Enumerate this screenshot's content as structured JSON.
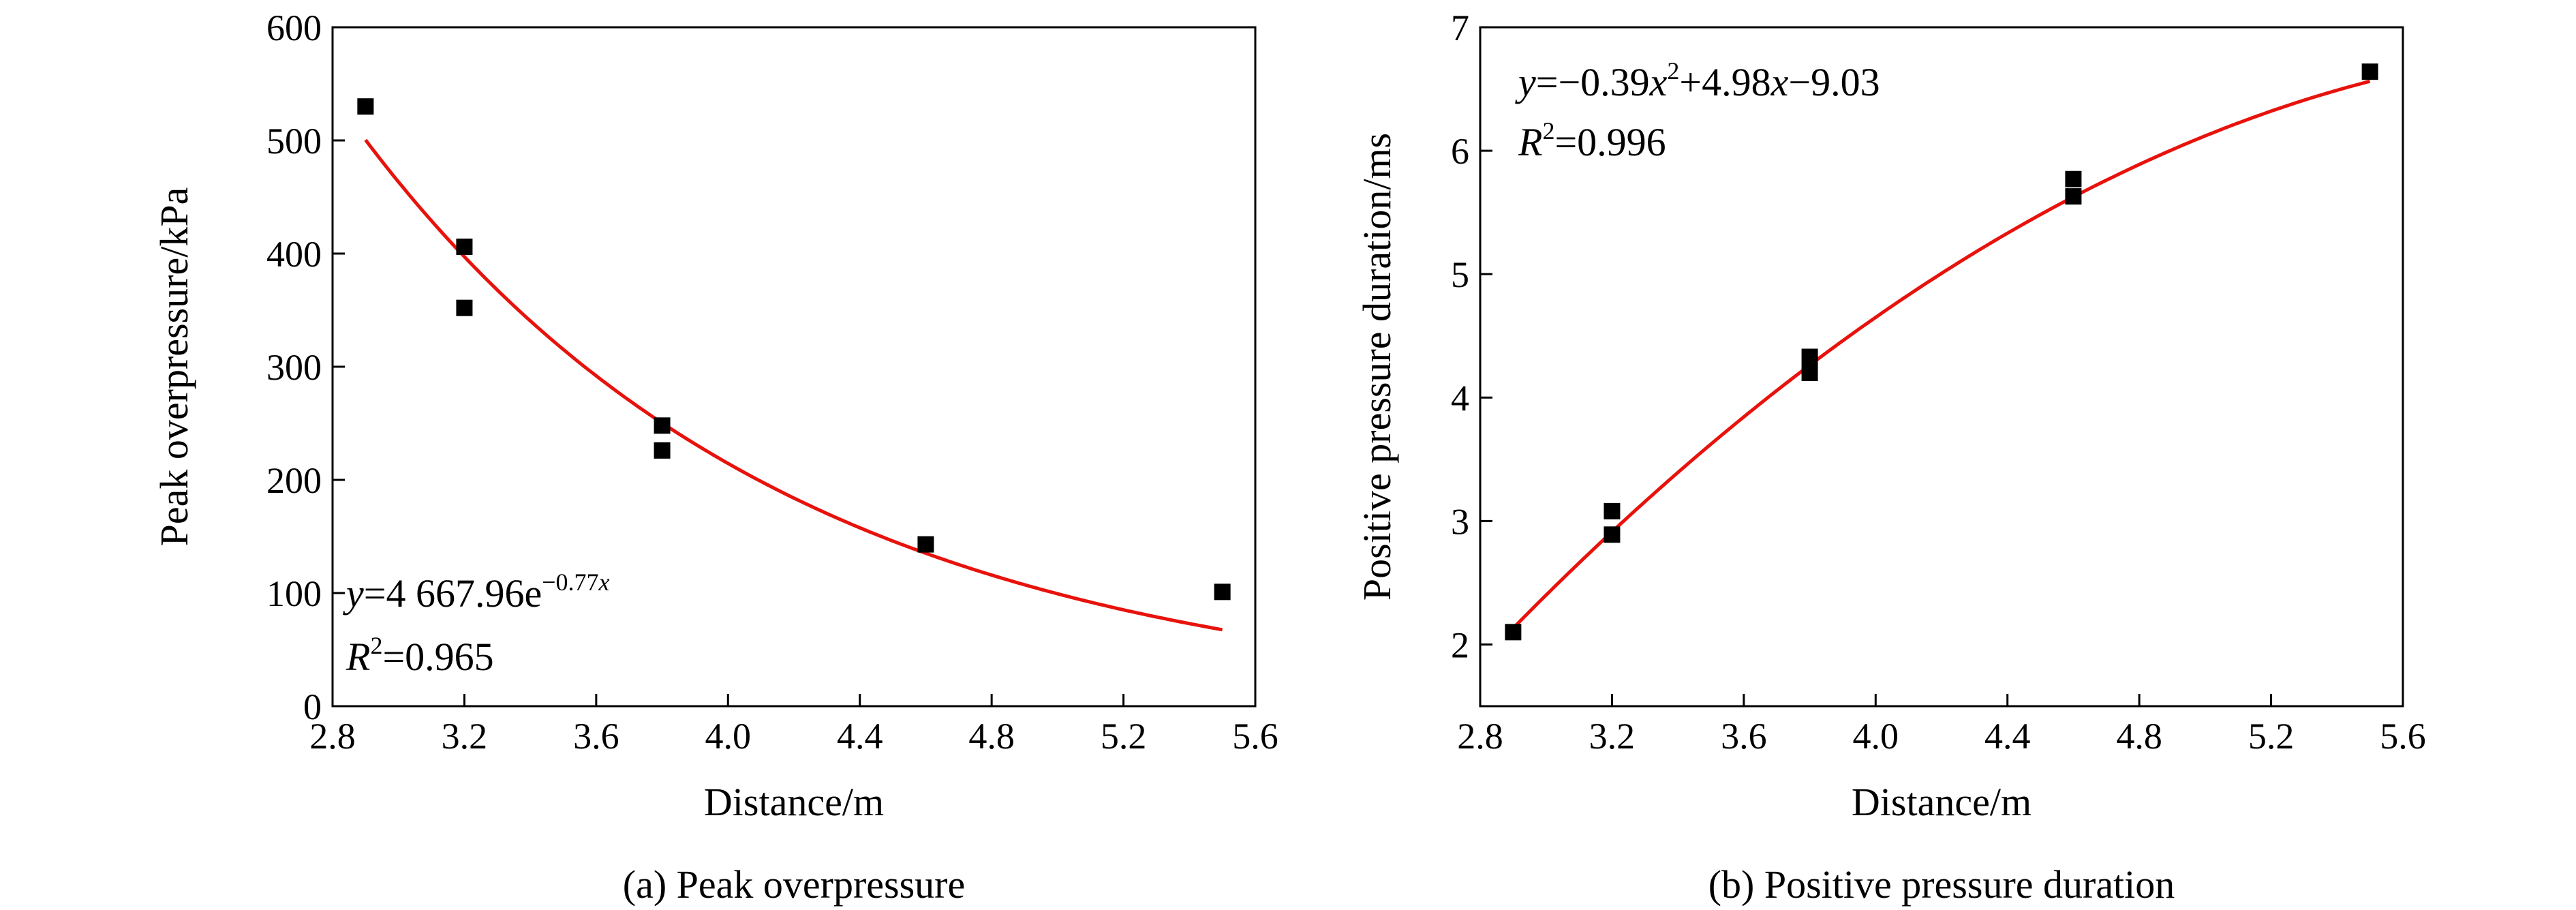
{
  "chart_data": [
    {
      "type": "scatter",
      "caption": "(a) Peak overpressure",
      "xlabel": "Distance/m",
      "ylabel": "Peak overpressure/kPa",
      "xlim": [
        2.8,
        5.6
      ],
      "ylim": [
        0,
        600
      ],
      "xticks": [
        "2.8",
        "3.2",
        "3.6",
        "4.0",
        "4.4",
        "4.8",
        "5.2",
        "5.6"
      ],
      "yticks": [
        "0",
        "100",
        "200",
        "300",
        "400",
        "500",
        "600"
      ],
      "grid": false,
      "series": [
        {
          "points": [
            {
              "x": 2.9,
              "y": 530
            },
            {
              "x": 3.2,
              "y": 406
            },
            {
              "x": 3.2,
              "y": 352
            },
            {
              "x": 3.8,
              "y": 248
            },
            {
              "x": 3.8,
              "y": 226
            },
            {
              "x": 4.6,
              "y": 143
            },
            {
              "x": 5.5,
              "y": 101
            }
          ],
          "marker": "square",
          "color": "#000000"
        }
      ],
      "fit": {
        "kind": "exponential",
        "a": 4667.96,
        "b": -0.77,
        "x_range": [
          2.9,
          5.5
        ],
        "color": "#e8120c"
      },
      "equation": {
        "y": "y",
        "eq": "=4 667.96e",
        "exp_sign": "−0.77",
        "exp_var": "x",
        "r": "R",
        "r_sup": "2",
        "r_val": "=0.965"
      }
    },
    {
      "type": "scatter",
      "caption": "(b) Positive pressure duration",
      "xlabel": "Distance/m",
      "ylabel": "Positive pressure duration/ms",
      "xlim": [
        2.8,
        5.6
      ],
      "ylim": [
        1.5,
        7
      ],
      "xticks": [
        "2.8",
        "3.2",
        "3.6",
        "4.0",
        "4.4",
        "4.8",
        "5.2",
        "5.6"
      ],
      "yticks": [
        "2",
        "3",
        "4",
        "5",
        "6",
        "7"
      ],
      "grid": false,
      "series": [
        {
          "points": [
            {
              "x": 2.9,
              "y": 2.1
            },
            {
              "x": 3.2,
              "y": 3.08
            },
            {
              "x": 3.2,
              "y": 2.89
            },
            {
              "x": 3.8,
              "y": 4.33
            },
            {
              "x": 3.8,
              "y": 4.2
            },
            {
              "x": 4.6,
              "y": 5.77
            },
            {
              "x": 4.6,
              "y": 5.63
            },
            {
              "x": 5.5,
              "y": 6.64
            }
          ],
          "marker": "square",
          "color": "#000000"
        }
      ],
      "fit": {
        "kind": "quadratic",
        "a": -0.39,
        "b": 4.98,
        "c": -9.03,
        "x_range": [
          2.9,
          5.5
        ],
        "color": "#e8120c"
      },
      "equation": {
        "y": "y",
        "p1": "=−0.39",
        "x1": "x",
        "sq": "2",
        "p2": "+4.98",
        "x2": "x",
        "p3": "−9.03",
        "r": "R",
        "r_sup": "2",
        "r_val": "=0.996"
      }
    }
  ]
}
